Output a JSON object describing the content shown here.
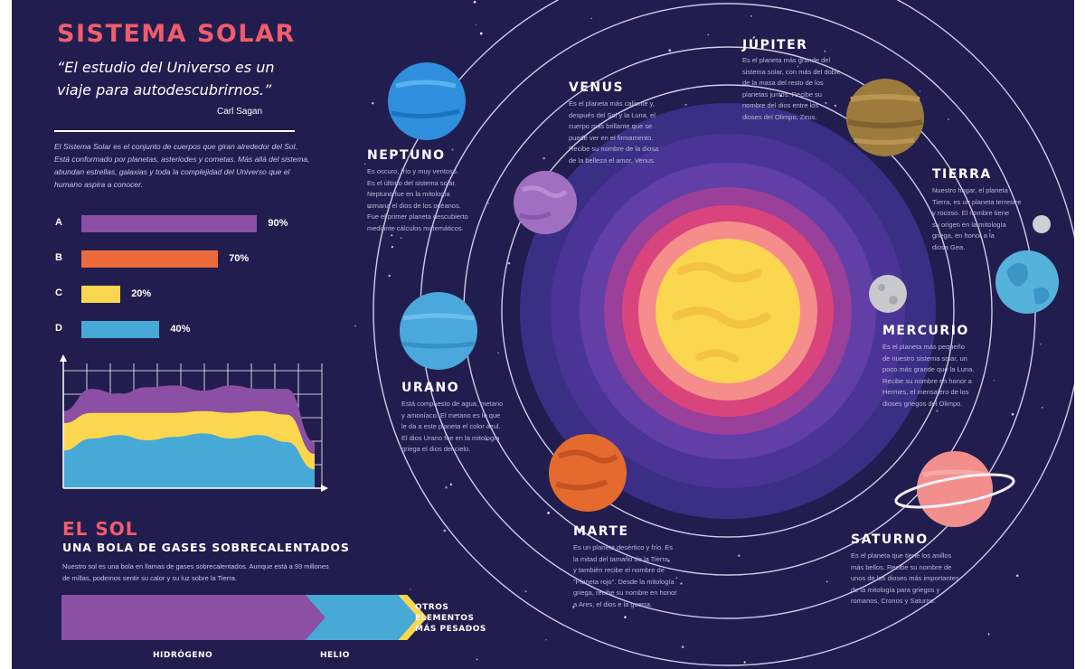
{
  "header": {
    "title": "SISTEMA SOLAR",
    "quote": "“El estudio del Universo es un viaje para autodescubrirnos.”",
    "author": "Carl Sagan",
    "intro": "El Sistema Solar es el conjunto de cuerpos que giran alrededor del Sol. Está conformado por planetas, asteriodes y cometas. Más allá del sistema, abundan estrellas, galaxias y toda la complejidad del Universo que el humano aspira a conocer."
  },
  "chart_data": [
    {
      "type": "bar",
      "categories": [
        "A",
        "B",
        "C",
        "D"
      ],
      "values": [
        90,
        70,
        20,
        40
      ],
      "value_labels": [
        "90%",
        "70%",
        "20%",
        "40%"
      ],
      "colors": [
        "#8b4fa3",
        "#ec6b3b",
        "#fbd64f",
        "#47a9d6"
      ],
      "xlim": [
        0,
        100
      ]
    },
    {
      "type": "area",
      "x": [
        0,
        1,
        2,
        3,
        4,
        5,
        6,
        7,
        8,
        9
      ],
      "series": [
        {
          "color": "#47a9d6",
          "values": [
            2.2,
            2.9,
            3.1,
            2.8,
            3.0,
            3.2,
            2.9,
            3.1,
            2.7,
            1.1
          ]
        },
        {
          "color": "#fbd64f",
          "values": [
            1.6,
            1.5,
            1.3,
            1.6,
            1.4,
            1.3,
            1.5,
            1.4,
            1.6,
            0.9
          ]
        },
        {
          "color": "#8b4fa3",
          "values": [
            0.7,
            1.4,
            1.1,
            1.5,
            1.6,
            1.2,
            1.6,
            1.3,
            1.5,
            0.7
          ]
        }
      ],
      "ylim": [
        0,
        7.5
      ],
      "grid": true
    },
    {
      "type": "bar",
      "categories": [
        "HIDRÓGENO",
        "HELIO",
        "OTROS ELEMENTOS MÁS PESADOS"
      ],
      "values": [
        71,
        27,
        2
      ],
      "colors": [
        "#8b4fa3",
        "#47a9d6",
        "#fbd64f"
      ]
    }
  ],
  "sun_section": {
    "title": "EL SOL",
    "subtitle": "UNA BOLA DE GASES SOBRECALENTADOS",
    "text": "Nuestro sol es una bola en llamas de gases sobrecalentados. Aunque está a 93 millones de millas, podemos sentir su calor y su luz sobre la Tierra.",
    "labels": [
      "HIDRÓGENO",
      "HELIO"
    ],
    "others_lines": [
      "OTROS",
      "ELEMENTOS",
      "MÁS PESADOS"
    ]
  },
  "planets": {
    "neptuno": {
      "name": "NEPTUNO",
      "desc": [
        "Es oscuro, frío y muy ventoso.",
        "Es el último del sistema solar.",
        "Neptuno fue en la mitología",
        "romana el dios de los océanos.",
        "Fue el primer planeta descubierto",
        "mediante cálculos matemáticos."
      ]
    },
    "venus": {
      "name": "VENUS",
      "desc": [
        "Es el planeta más caliente y,",
        "después del Sol y la Luna, el",
        "cuerpo más brillante que se",
        "puede ver en el firmamento.",
        "Recibe su nombre de la diosa",
        "de la belleza el amor, Venus."
      ]
    },
    "jupiter": {
      "name": "JÚPITER",
      "desc": [
        "Es el planeta más grande del",
        "sistema solar, con más del doble",
        "de la masa del resto de los",
        "planetas juntos. Recibe su",
        "nombre del dios entre los",
        "dioses del Olimpo, Zeus."
      ]
    },
    "tierra": {
      "name": "TIERRA",
      "desc": [
        "Nuestro hogar, el planeta",
        "Tierra, es un planeta terrestre",
        "y rocoso. El nombre tiene",
        "su origen en la mitología",
        "griega, en honor a la",
        "diosa Gea."
      ]
    },
    "mercurio": {
      "name": "MERCURIO",
      "desc": [
        "Es el planeta más pequeño",
        "de nuestro sistema solar, un",
        "poco más grande que la Luna.",
        "Recibe su nombre en honor a",
        "Hermes, el mensajero de los",
        "dioses griegos del Olimpo."
      ]
    },
    "urano": {
      "name": "URANO",
      "desc": [
        "Está compuesto de agua, metano",
        "y amoníaco. El metano es lo que",
        "le da a este planeta el color azul.",
        "El dios Urano fue en la mitología",
        "griega el dios del cielo."
      ]
    },
    "marte": {
      "name": "MARTE",
      "desc": [
        "Es un planeta desértico y frío. Es",
        "la mitad del tamaño de la Tierra,",
        "y también recibe el nombre de",
        "\"Planeta rojo\". Desde la mitología",
        "griega, recibe su nombre en honor",
        "a Ares, el dios e la guerra."
      ]
    },
    "saturno": {
      "name": "SATURNO",
      "desc": [
        "Es el planeta que tiene los anillos",
        "más bellos. Recibe su nombre de",
        "unos de los dioses más importantes",
        "de la mitología para griegos y",
        "romanos, Cronos y Saturno."
      ]
    }
  },
  "colors": {
    "background": "#221d4f",
    "title_accent": "#ef5d6a",
    "sun": "#fbd64f",
    "purple": "#8b4fa3",
    "orange": "#ec6b3b",
    "yellow": "#fbd64f",
    "blue": "#47a9d6"
  }
}
